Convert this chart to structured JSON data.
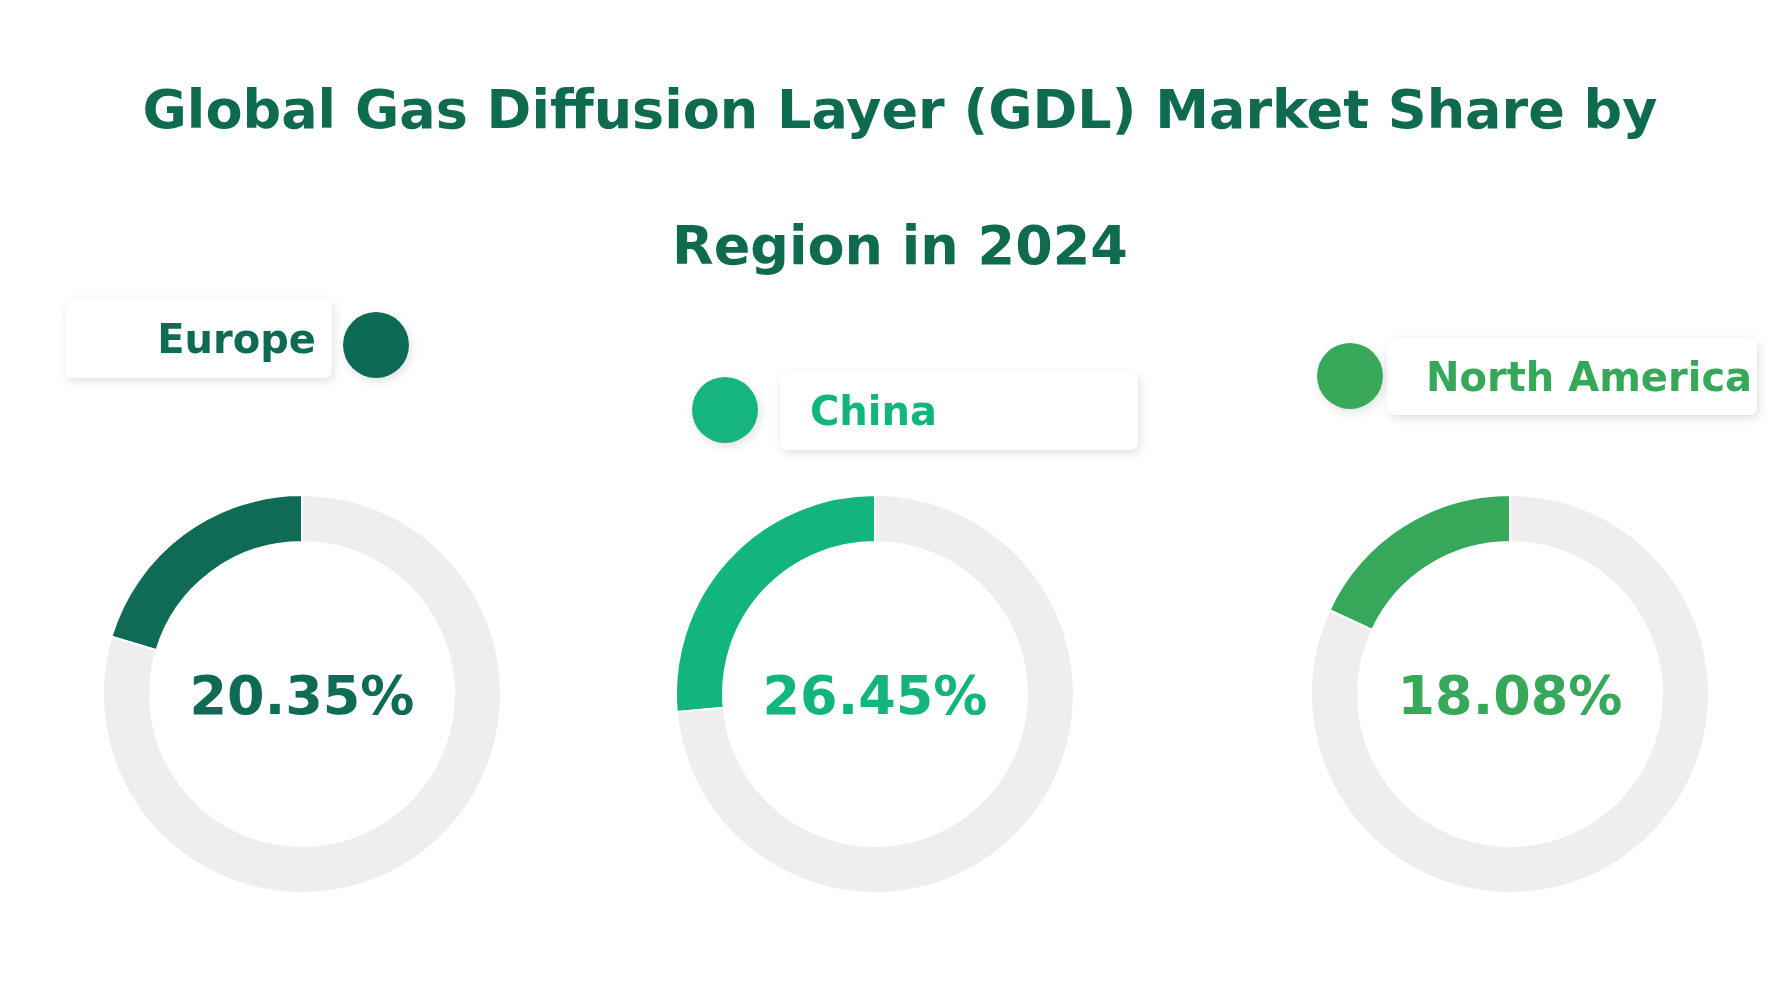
{
  "chart_data": [
    {
      "type": "donut",
      "title": "Global Gas Diffusion Layer (GDL) Market Share by Region in 2024",
      "categories": [
        "Europe",
        null
      ],
      "values": [
        20.35,
        79.65
      ],
      "colors": [
        "#0f6b55",
        "#eeeeee"
      ],
      "annotations": [
        "20.35%"
      ],
      "legend": "top"
    },
    {
      "type": "donut",
      "categories": [
        "China",
        null
      ],
      "values": [
        26.45,
        73.55
      ],
      "colors": [
        "#12b57e",
        "#eeeeee"
      ],
      "annotations": [
        "26.45%"
      ],
      "legend": "top"
    },
    {
      "type": "donut",
      "categories": [
        "North America",
        null
      ],
      "values": [
        18.08,
        81.92
      ],
      "colors": [
        "#37a85a",
        "#eeeeee"
      ],
      "annotations": [
        "18.08%"
      ],
      "legend": "top"
    }
  ]
}
